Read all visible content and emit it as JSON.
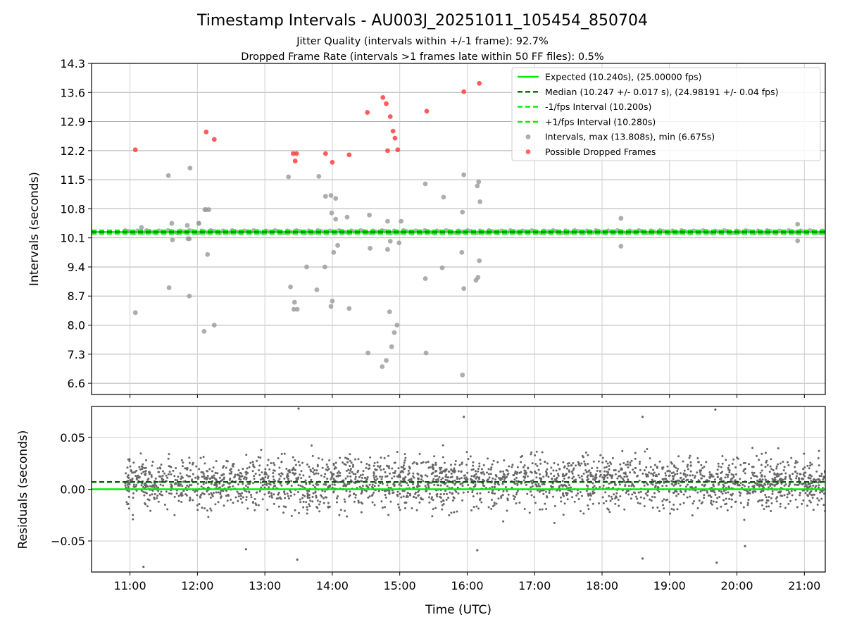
{
  "chart_data": {
    "title": "Timestamp Intervals - AU003J_20251011_105454_850704",
    "subtitle_lines": [
      "Jitter Quality (intervals within +/-1 frame): 92.7%",
      "Dropped Frame Rate (intervals >1 frames late within 50 FF files): 0.5%"
    ],
    "xlabel": "Time (UTC)",
    "x_ticks": [
      "11:00",
      "12:00",
      "13:00",
      "14:00",
      "15:00",
      "16:00",
      "17:00",
      "18:00",
      "19:00",
      "20:00",
      "21:00"
    ],
    "xlim": [
      10.43,
      21.31
    ],
    "grid": true,
    "panels": [
      {
        "type": "scatter",
        "ylabel": "Intervals (seconds)",
        "ylim": [
          6.33,
          14.3
        ],
        "y_ticks": [
          "14.3",
          "13.6",
          "12.9",
          "12.2",
          "11.5",
          "10.8",
          "10.1",
          "9.4",
          "8.7",
          "8.0",
          "7.3",
          "6.6"
        ],
        "legend_position": "top-right",
        "reference_lines": [
          {
            "name": "Expected (10.240s), (25.00000 fps)",
            "y": 10.24,
            "color": "#00ee00",
            "style": "solid"
          },
          {
            "name": "Median (10.247 +/- 0.017 s), (24.98191 +/- 0.04 fps)",
            "y": 10.247,
            "color": "#006400",
            "style": "dashed"
          },
          {
            "name": "-1/fps Interval (10.200s)",
            "y": 10.2,
            "color": "#00ee00",
            "style": "dashed"
          },
          {
            "name": "+1/fps Interval (10.280s)",
            "y": 10.28,
            "color": "#00ee00",
            "style": "dashed"
          }
        ],
        "baseline_band": {
          "x_start": 10.93,
          "x_end": 21.31,
          "y": 10.25
        },
        "series": [
          {
            "name": "Intervals, max (13.808s), min (6.675s)",
            "color": "#999999",
            "x": [
              11.08,
              11.58,
              11.88,
              11.57,
              11.62,
              11.17,
              11.85,
              11.89,
              12.02,
              12.1,
              12.15,
              12.13,
              12.17,
              11.88,
              12.11,
              12.25,
              11.63,
              11.86,
              12.02,
              13.35,
              13.62,
              13.77,
              13.89,
              13.38,
              13.44,
              13.43,
              13.48,
              13.8,
              13.9,
              13.99,
              14.05,
              14.02,
              14.08,
              14.22,
              14.0,
              14.05,
              13.98,
              14.25,
              13.98,
              14.55,
              14.56,
              14.82,
              14.86,
              14.99,
              15.02,
              14.85,
              14.92,
              14.8,
              14.88,
              14.74,
              14.53,
              14.82,
              14.96,
              15.38,
              15.38,
              15.39,
              15.65,
              15.63,
              15.92,
              15.93,
              15.95,
              15.95,
              16.15,
              16.17,
              16.19,
              16.16,
              16.18,
              16.13,
              15.93,
              18.28,
              18.28,
              20.9,
              20.9
            ],
            "y": [
              8.3,
              8.9,
              8.7,
              11.6,
              10.45,
              10.35,
              10.4,
              11.78,
              10.45,
              7.85,
              9.7,
              10.78,
              10.78,
              10.08,
              10.78,
              8.0,
              10.05,
              10.08,
              10.45,
              11.57,
              9.4,
              8.85,
              9.4,
              8.92,
              8.55,
              8.38,
              8.38,
              11.58,
              11.1,
              10.7,
              10.55,
              9.75,
              9.92,
              10.6,
              8.58,
              11.05,
              11.12,
              8.4,
              8.45,
              10.65,
              9.85,
              10.5,
              10.02,
              9.98,
              10.5,
              8.32,
              7.82,
              7.15,
              7.48,
              7.0,
              7.33,
              9.82,
              8.0,
              11.4,
              9.12,
              7.33,
              11.08,
              9.38,
              9.75,
              10.72,
              8.88,
              11.62,
              11.35,
              11.45,
              10.97,
              9.15,
              9.55,
              9.08,
              6.8,
              10.57,
              9.9,
              10.43,
              10.03
            ]
          },
          {
            "name": "Possible Dropped Frames",
            "color": "#ff4040",
            "x": [
              11.08,
              12.13,
              12.25,
              13.42,
              13.47,
              13.45,
              13.9,
              14.0,
              14.25,
              14.52,
              14.75,
              14.8,
              14.86,
              14.9,
              14.93,
              14.97,
              14.82,
              15.4,
              15.95,
              16.18
            ],
            "y": [
              12.22,
              12.65,
              12.47,
              12.13,
              12.13,
              11.95,
              12.13,
              11.92,
              12.1,
              13.12,
              13.48,
              13.33,
              13.02,
              12.67,
              12.5,
              12.22,
              12.2,
              13.15,
              13.62,
              13.82
            ]
          }
        ]
      },
      {
        "type": "scatter",
        "ylabel": "Residuals (seconds)",
        "ylim": [
          -0.08,
          0.08
        ],
        "y_ticks": [
          "0.05",
          "0.00",
          "−0.05"
        ],
        "reference_lines": [
          {
            "y": 0.0,
            "color": "#00ee00",
            "style": "solid"
          },
          {
            "y": 0.007,
            "color": "#006400",
            "style": "dashed"
          }
        ],
        "point_color": "#666666",
        "residual_spread_sd": 0.02,
        "outliers": [
          {
            "x": 11.2,
            "y": -0.075
          },
          {
            "x": 13.5,
            "y": 0.078
          },
          {
            "x": 13.48,
            "y": -0.068
          },
          {
            "x": 15.95,
            "y": 0.07
          },
          {
            "x": 18.6,
            "y": 0.07
          },
          {
            "x": 19.68,
            "y": 0.077
          },
          {
            "x": 19.7,
            "y": -0.071
          },
          {
            "x": 18.6,
            "y": -0.067
          },
          {
            "x": 12.72,
            "y": -0.058
          },
          {
            "x": 16.15,
            "y": -0.059
          },
          {
            "x": 20.12,
            "y": -0.055
          }
        ]
      }
    ]
  }
}
